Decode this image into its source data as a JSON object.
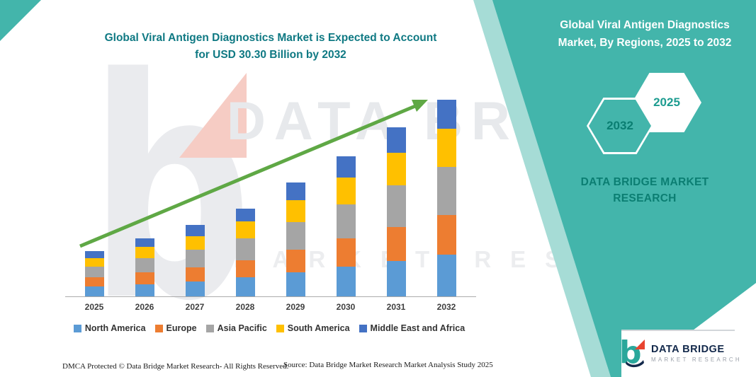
{
  "colors": {
    "teal": "#43B5AB",
    "teal_stripe": "#A6DCD6",
    "title_teal": "#0F7983",
    "panel_text_dark": "#0B7E72",
    "arrow_green": "#5FA845",
    "axis_gray": "#ABABAB",
    "navy": "#13294B",
    "logo_red": "#E8432F"
  },
  "title": {
    "line1": "Global Viral Antigen Diagnostics Market is Expected to Account",
    "line2": "for USD 30.30 Billion by 2032"
  },
  "watermark": {
    "line1": "DATA BRIDGE",
    "line2": "MARKET RESEARCH",
    "logo_icon": "data-bridge-b-watermark"
  },
  "panel": {
    "title_line1": "Global Viral Antigen Diagnostics",
    "title_line2": "Market, By Regions, 2025 to 2032",
    "hexagons": [
      {
        "label": "2032"
      },
      {
        "label": "2025"
      }
    ],
    "brand_line1": "DATA BRIDGE MARKET",
    "brand_line2": "RESEARCH"
  },
  "logo": {
    "icon": "data-bridge-b-icon",
    "name": "DATA BRIDGE",
    "tagline": "MARKET RESEARCH"
  },
  "footer": {
    "dmca": "DMCA Protected © Data Bridge Market Research- All Rights Reserved.",
    "source": "Source: Data Bridge Market Research Market Analysis Study 2025"
  },
  "chart_data": {
    "type": "bar",
    "stacked": true,
    "title": "Global Viral Antigen Diagnostics Market is Expected to Account for USD 30.30 Billion by 2032",
    "unit": "USD Billion",
    "categories": [
      "2025",
      "2026",
      "2027",
      "2028",
      "2029",
      "2030",
      "2031",
      "2032"
    ],
    "series": [
      {
        "name": "North America",
        "color": "#5B9BD5",
        "values": [
          1.5,
          1.9,
          2.3,
          2.9,
          3.7,
          4.6,
          5.5,
          6.4
        ]
      },
      {
        "name": "Europe",
        "color": "#ED7D31",
        "values": [
          1.4,
          1.8,
          2.2,
          2.7,
          3.5,
          4.3,
          5.2,
          6.1
        ]
      },
      {
        "name": "Asia Pacific",
        "color": "#A5A5A5",
        "values": [
          1.7,
          2.2,
          2.7,
          3.3,
          4.3,
          5.3,
          6.4,
          7.5
        ]
      },
      {
        "name": "South America",
        "color": "#FFC000",
        "values": [
          1.3,
          1.7,
          2.1,
          2.6,
          3.3,
          4.1,
          5.0,
          5.8
        ]
      },
      {
        "name": "Middle East and Africa",
        "color": "#4472C4",
        "values": [
          1.1,
          1.3,
          1.7,
          2.0,
          2.7,
          3.3,
          3.9,
          4.5
        ]
      }
    ],
    "totals": [
      7.0,
      8.9,
      11.0,
      13.5,
      17.5,
      21.6,
      26.0,
      30.3
    ],
    "ylim": [
      0,
      32
    ],
    "grid": false,
    "legend_position": "bottom",
    "annotation": "green upward trend arrow across bars"
  }
}
